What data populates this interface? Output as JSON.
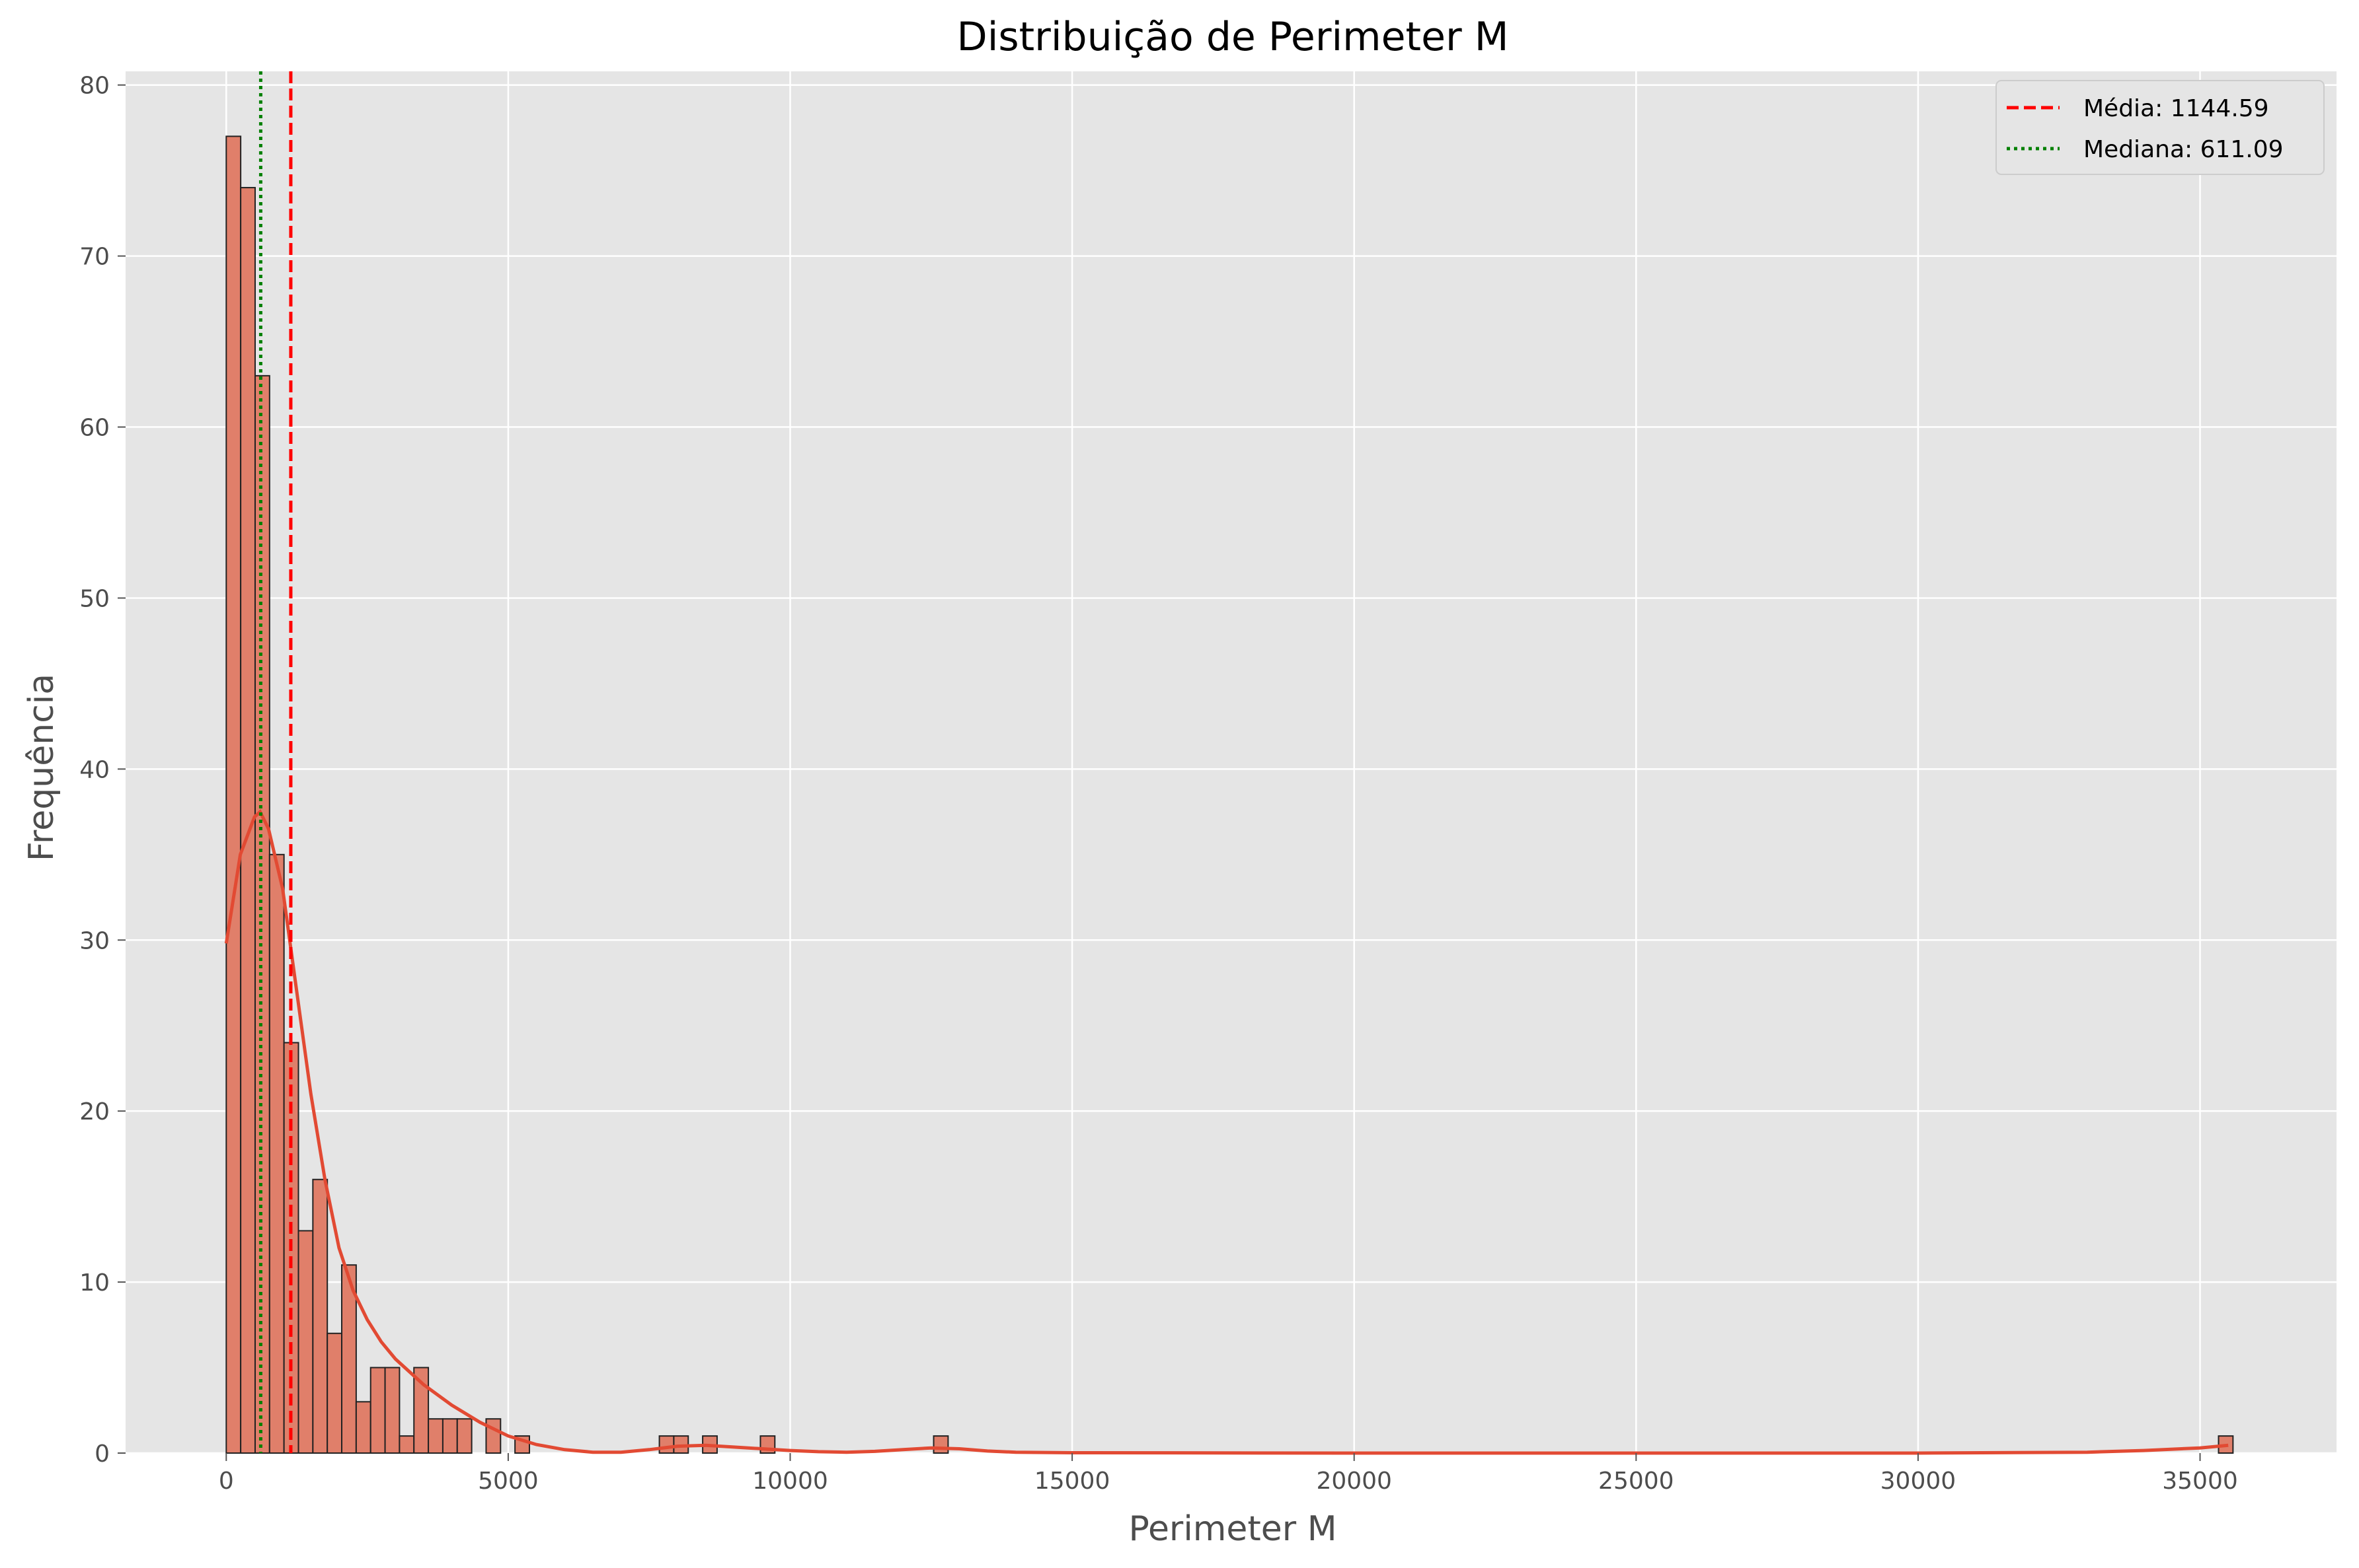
{
  "chart_data": {
    "type": "bar",
    "title": "Distribuição de Perimeter M",
    "xlabel": "Perimeter M",
    "ylabel": "Frequência",
    "xlim": [
      -1785,
      37420
    ],
    "ylim": [
      0,
      80.8
    ],
    "xticks": [
      0,
      5000,
      10000,
      15000,
      20000,
      25000,
      30000,
      35000
    ],
    "yticks": [
      0,
      10,
      20,
      30,
      40,
      50,
      60,
      70,
      80
    ],
    "grid": true,
    "bin_width": 256,
    "bins_start": [
      0,
      256,
      512,
      768,
      1024,
      1280,
      1536,
      1792,
      2048,
      2304,
      2560,
      2816,
      3072,
      3328,
      3584,
      3840,
      4096,
      4608,
      5120,
      7680,
      7936,
      8448,
      9472,
      12544,
      35328
    ],
    "counts": [
      77,
      74,
      63,
      35,
      24,
      13,
      16,
      7,
      11,
      3,
      5,
      5,
      1,
      5,
      2,
      2,
      2,
      2,
      1,
      1,
      1,
      1,
      1,
      1,
      1
    ],
    "kde": {
      "x": [
        0,
        250,
        500,
        600,
        750,
        1000,
        1250,
        1500,
        1750,
        2000,
        2250,
        2500,
        2750,
        3000,
        3500,
        4000,
        4500,
        5000,
        5500,
        6000,
        6500,
        7000,
        7500,
        8000,
        8500,
        9000,
        9500,
        10000,
        10500,
        11000,
        11500,
        12000,
        12500,
        13000,
        13500,
        14000,
        15000,
        20000,
        25000,
        30000,
        33000,
        34000,
        35000,
        35500
      ],
      "y": [
        29.8,
        35,
        37.2,
        37.5,
        36.5,
        33,
        27,
        21,
        16,
        12,
        9.5,
        7.8,
        6.5,
        5.5,
        4,
        2.8,
        1.8,
        1,
        0.5,
        0.2,
        0.05,
        0.05,
        0.2,
        0.4,
        0.45,
        0.35,
        0.25,
        0.15,
        0.08,
        0.05,
        0.1,
        0.2,
        0.3,
        0.25,
        0.12,
        0.05,
        0.02,
        0,
        0,
        0,
        0.05,
        0.15,
        0.3,
        0.45
      ]
    },
    "colors": {
      "bar_fill": "#e07f6a",
      "bar_edge": "#222222",
      "kde_line": "#e24a33",
      "mean_line": "#ff0000",
      "median_line": "#008000",
      "plot_background": "#e5e5e5",
      "grid": "#ffffff"
    },
    "reference_lines": [
      {
        "label": "Média: 1144.59",
        "value": 1144.59,
        "style": "dashed",
        "color": "#ff0000"
      },
      {
        "label": "Mediana: 611.09",
        "value": 611.09,
        "style": "dotted",
        "color": "#008000"
      }
    ],
    "legend_position": "top-right"
  }
}
